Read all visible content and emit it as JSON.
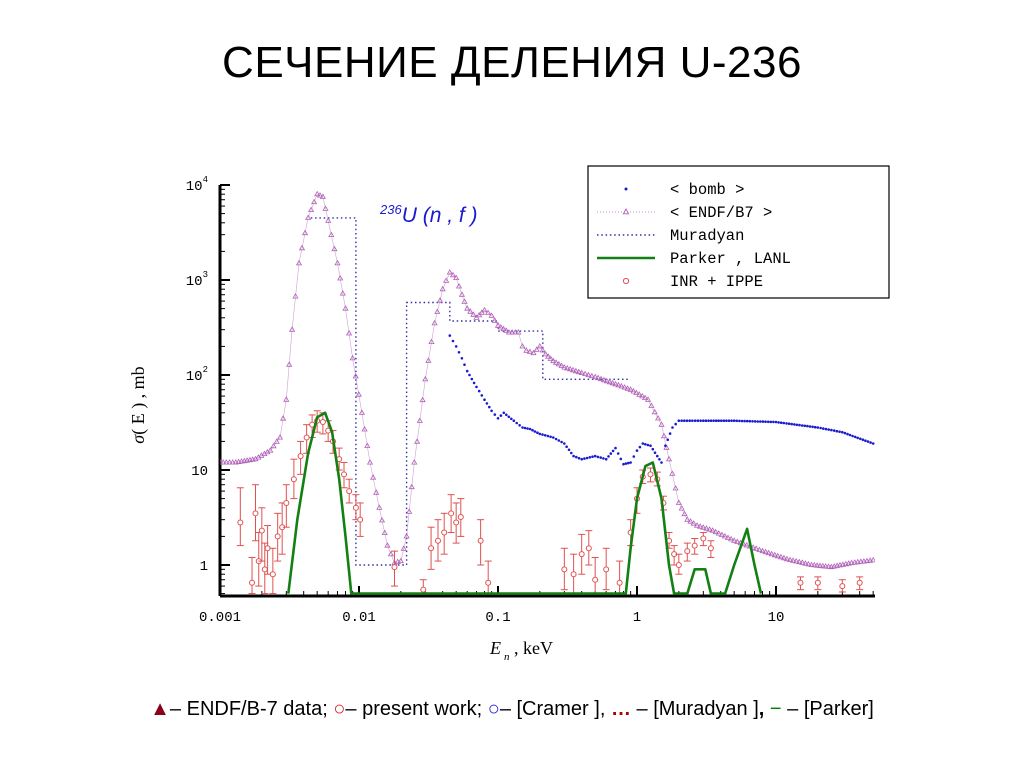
{
  "slide": {
    "title": "СЕЧЕНИЕ ДЕЛЕНИЯ U-236"
  },
  "caption": {
    "sym1": "▲",
    "text1": "– ENDF/B-7 data; ",
    "sym2": "○",
    "text2": "– present work; ",
    "sym3": "○",
    "text3": "– [Cramer ], ",
    "sym4": "…",
    "text4": " – [Muradyan ]",
    "comma": ",",
    "sym5": " − ",
    "text5": "– [Parker]"
  },
  "colors": {
    "bomb": "#1a1ad0",
    "endf": "#b060b8",
    "muradyan": "#3030a0",
    "parker": "#138013",
    "inr": "#e05050"
  },
  "chart_data": {
    "type": "line",
    "reaction_label": {
      "sup": "236",
      "main": "U (n , f )"
    },
    "xlabel": {
      "var": "E",
      "sub": "n",
      "rest": " ,   keV"
    },
    "ylabel": {
      "var": "σ",
      "rest": "( E ) , mb"
    },
    "x_scale": "log",
    "y_scale": "log",
    "xlim": [
      0.001,
      50
    ],
    "ylim": [
      0.5,
      10000
    ],
    "x_ticks": [
      {
        "value": 0.001,
        "label": "0.001"
      },
      {
        "value": 0.01,
        "label": "0.01"
      },
      {
        "value": 0.1,
        "label": "0.1"
      },
      {
        "value": 1,
        "label": "1"
      },
      {
        "value": 10,
        "label": "10"
      }
    ],
    "y_ticks": [
      {
        "value": 1,
        "base": "1",
        "exp": ""
      },
      {
        "value": 10,
        "base": "10",
        "exp": ""
      },
      {
        "value": 100,
        "base": "10",
        "exp": "2"
      },
      {
        "value": 1000,
        "base": "10",
        "exp": "3"
      },
      {
        "value": 10000,
        "base": "10",
        "exp": "4"
      }
    ],
    "legend_position": "top-right",
    "legend": [
      {
        "key": "bomb",
        "label": "< bomb >"
      },
      {
        "key": "endf",
        "label": "< ENDF/B7 >"
      },
      {
        "key": "muradyan",
        "label": "Muradyan"
      },
      {
        "key": "parker",
        "label": "Parker , LANL"
      },
      {
        "key": "inr",
        "label": "INR + IPPE"
      }
    ],
    "series": [
      {
        "key": "bomb",
        "name": "< bomb >",
        "style": "dots",
        "points": [
          [
            0.045,
            260
          ],
          [
            0.05,
            200
          ],
          [
            0.055,
            150
          ],
          [
            0.06,
            110
          ],
          [
            0.07,
            75
          ],
          [
            0.08,
            55
          ],
          [
            0.09,
            42
          ],
          [
            0.1,
            35
          ],
          [
            0.11,
            40
          ],
          [
            0.13,
            33
          ],
          [
            0.15,
            28
          ],
          [
            0.17,
            27
          ],
          [
            0.2,
            24
          ],
          [
            0.25,
            22
          ],
          [
            0.3,
            19
          ],
          [
            0.35,
            14
          ],
          [
            0.4,
            13
          ],
          [
            0.5,
            14
          ],
          [
            0.6,
            13
          ],
          [
            0.7,
            17
          ],
          [
            0.8,
            11.5
          ],
          [
            0.9,
            12
          ],
          [
            1.0,
            16
          ],
          [
            1.1,
            19
          ],
          [
            1.25,
            18
          ],
          [
            1.4,
            14
          ],
          [
            1.5,
            12
          ],
          [
            1.6,
            18
          ],
          [
            1.8,
            28
          ],
          [
            2,
            33
          ],
          [
            3,
            33
          ],
          [
            5,
            33
          ],
          [
            10,
            32
          ],
          [
            20,
            28
          ],
          [
            30,
            25
          ],
          [
            50,
            19
          ]
        ]
      },
      {
        "key": "endf",
        "name": "< ENDF/B7 >",
        "style": "triangles",
        "points": [
          [
            0.001,
            12
          ],
          [
            0.0013,
            12
          ],
          [
            0.0018,
            13
          ],
          [
            0.0023,
            16
          ],
          [
            0.0027,
            22
          ],
          [
            0.003,
            55
          ],
          [
            0.0033,
            300
          ],
          [
            0.0037,
            1500
          ],
          [
            0.0043,
            4500
          ],
          [
            0.005,
            8000
          ],
          [
            0.0055,
            7500
          ],
          [
            0.006,
            4200
          ],
          [
            0.007,
            1500
          ],
          [
            0.008,
            500
          ],
          [
            0.009,
            150
          ],
          [
            0.0105,
            40
          ],
          [
            0.012,
            12
          ],
          [
            0.014,
            4
          ],
          [
            0.016,
            1.6
          ],
          [
            0.018,
            1.05
          ],
          [
            0.02,
            1.1
          ],
          [
            0.022,
            2
          ],
          [
            0.025,
            12
          ],
          [
            0.03,
            90
          ],
          [
            0.035,
            350
          ],
          [
            0.04,
            800
          ],
          [
            0.045,
            1200
          ],
          [
            0.05,
            1050
          ],
          [
            0.055,
            700
          ],
          [
            0.06,
            500
          ],
          [
            0.07,
            400
          ],
          [
            0.08,
            480
          ],
          [
            0.09,
            420
          ],
          [
            0.1,
            330
          ],
          [
            0.12,
            280
          ],
          [
            0.14,
            280
          ],
          [
            0.15,
            200
          ],
          [
            0.16,
            180
          ],
          [
            0.18,
            170
          ],
          [
            0.2,
            200
          ],
          [
            0.22,
            165
          ],
          [
            0.25,
            140
          ],
          [
            0.3,
            120
          ],
          [
            0.4,
            105
          ],
          [
            0.5,
            95
          ],
          [
            0.7,
            80
          ],
          [
            0.9,
            70
          ],
          [
            1.2,
            55
          ],
          [
            1.5,
            30
          ],
          [
            1.7,
            13
          ],
          [
            2.0,
            4.5
          ],
          [
            2.3,
            3
          ],
          [
            2.7,
            2.6
          ],
          [
            3.5,
            2.3
          ],
          [
            5,
            1.8
          ],
          [
            8,
            1.4
          ],
          [
            12,
            1.15
          ],
          [
            18,
            1.0
          ],
          [
            25,
            0.95
          ],
          [
            35,
            1.05
          ],
          [
            50,
            1.12
          ]
        ]
      },
      {
        "key": "muradyan",
        "name": "Muradyan",
        "style": "dotted-step",
        "points": [
          [
            0.0045,
            4500
          ],
          [
            0.0095,
            4500
          ],
          [
            0.0095,
            1.0
          ],
          [
            0.022,
            1.0
          ],
          [
            0.022,
            580
          ],
          [
            0.045,
            580
          ],
          [
            0.045,
            370
          ],
          [
            0.1,
            370
          ],
          [
            0.1,
            290
          ],
          [
            0.21,
            290
          ],
          [
            0.21,
            90
          ],
          [
            0.9,
            90
          ]
        ]
      },
      {
        "key": "parker",
        "name": "Parker , LANL",
        "style": "line",
        "points": [
          [
            0.0031,
            0.5
          ],
          [
            0.0036,
            3
          ],
          [
            0.0043,
            15
          ],
          [
            0.005,
            36
          ],
          [
            0.0057,
            40
          ],
          [
            0.0064,
            25
          ],
          [
            0.0072,
            8
          ],
          [
            0.008,
            2
          ],
          [
            0.0088,
            0.5
          ],
          [
            0.83,
            0.5
          ],
          [
            0.9,
            1.5
          ],
          [
            1.0,
            5
          ],
          [
            1.15,
            11
          ],
          [
            1.3,
            12
          ],
          [
            1.5,
            5
          ],
          [
            1.7,
            1
          ],
          [
            1.85,
            0.5
          ],
          [
            2.3,
            0.5
          ],
          [
            2.6,
            0.9
          ],
          [
            3.1,
            0.9
          ],
          [
            3.4,
            0.5
          ],
          [
            4.3,
            0.5
          ],
          [
            5.0,
            1.0
          ],
          [
            6.2,
            2.4
          ],
          [
            7.0,
            1.0
          ],
          [
            7.8,
            0.5
          ]
        ]
      },
      {
        "key": "inr",
        "name": "INR + IPPE",
        "style": "circles-err",
        "points": [
          [
            0.0014,
            2.8,
            1.6,
            6.5
          ],
          [
            0.0017,
            0.65,
            0.5,
            1.2
          ],
          [
            0.0018,
            3.5,
            1.8,
            7
          ],
          [
            0.0019,
            1.1,
            0.6,
            2.2
          ],
          [
            0.002,
            2.3,
            1.1,
            4
          ],
          [
            0.0021,
            0.9,
            0.5,
            1.7
          ],
          [
            0.0022,
            1.5,
            0.8,
            2.6
          ],
          [
            0.0024,
            0.8,
            0.5,
            1.5
          ],
          [
            0.0026,
            2.0,
            1.1,
            3.5
          ],
          [
            0.0028,
            2.5,
            1.3,
            4.5
          ],
          [
            0.003,
            4.5,
            2.5,
            7
          ],
          [
            0.0034,
            8,
            5,
            13
          ],
          [
            0.0038,
            14,
            9,
            20
          ],
          [
            0.0042,
            22,
            15,
            30
          ],
          [
            0.0046,
            30,
            22,
            38
          ],
          [
            0.005,
            33,
            25,
            42
          ],
          [
            0.0055,
            32,
            24,
            40
          ],
          [
            0.006,
            26,
            20,
            33
          ],
          [
            0.0065,
            20,
            15,
            26
          ],
          [
            0.0072,
            13,
            10,
            17
          ],
          [
            0.0078,
            9,
            6.5,
            12
          ],
          [
            0.0085,
            6,
            4.5,
            8
          ],
          [
            0.0095,
            4,
            3,
            5.5
          ],
          [
            0.0102,
            3,
            2,
            4.5
          ],
          [
            0.018,
            0.95,
            0.6,
            1.4
          ],
          [
            0.029,
            0.55,
            0.5,
            0.7
          ],
          [
            0.033,
            1.5,
            0.9,
            2.5
          ],
          [
            0.037,
            1.8,
            1.1,
            3
          ],
          [
            0.041,
            2.2,
            1.3,
            3.5
          ],
          [
            0.046,
            3.5,
            2.2,
            5.5
          ],
          [
            0.05,
            2.8,
            1.7,
            4.5
          ],
          [
            0.054,
            3.2,
            2,
            5
          ],
          [
            0.075,
            1.8,
            1,
            3
          ],
          [
            0.085,
            0.65,
            0.5,
            1.1
          ],
          [
            0.3,
            0.9,
            0.55,
            1.5
          ],
          [
            0.35,
            0.8,
            0.5,
            1.3
          ],
          [
            0.4,
            1.3,
            0.8,
            2.1
          ],
          [
            0.45,
            1.5,
            1,
            2.3
          ],
          [
            0.5,
            0.7,
            0.5,
            1.2
          ],
          [
            0.6,
            0.9,
            0.55,
            1.5
          ],
          [
            0.75,
            0.65,
            0.5,
            1.1
          ],
          [
            0.9,
            2.2,
            1.6,
            3
          ],
          [
            1.0,
            5,
            3.5,
            6.5
          ],
          [
            1.1,
            8.5,
            7.2,
            10
          ],
          [
            1.25,
            9,
            7.5,
            10.5
          ],
          [
            1.4,
            8,
            6.8,
            9.5
          ],
          [
            1.55,
            4.5,
            3.8,
            5.3
          ],
          [
            1.7,
            1.8,
            1.5,
            2.2
          ],
          [
            1.85,
            1.3,
            1.0,
            1.6
          ],
          [
            2.0,
            1.0,
            0.8,
            1.3
          ],
          [
            2.3,
            1.4,
            1.1,
            1.7
          ],
          [
            2.6,
            1.6,
            1.3,
            1.9
          ],
          [
            3.0,
            1.9,
            1.6,
            2.2
          ],
          [
            3.4,
            1.5,
            1.2,
            1.8
          ],
          [
            15,
            0.65,
            0.55,
            0.75
          ],
          [
            20,
            0.65,
            0.55,
            0.75
          ],
          [
            30,
            0.6,
            0.52,
            0.7
          ],
          [
            40,
            0.65,
            0.55,
            0.75
          ]
        ]
      }
    ]
  }
}
